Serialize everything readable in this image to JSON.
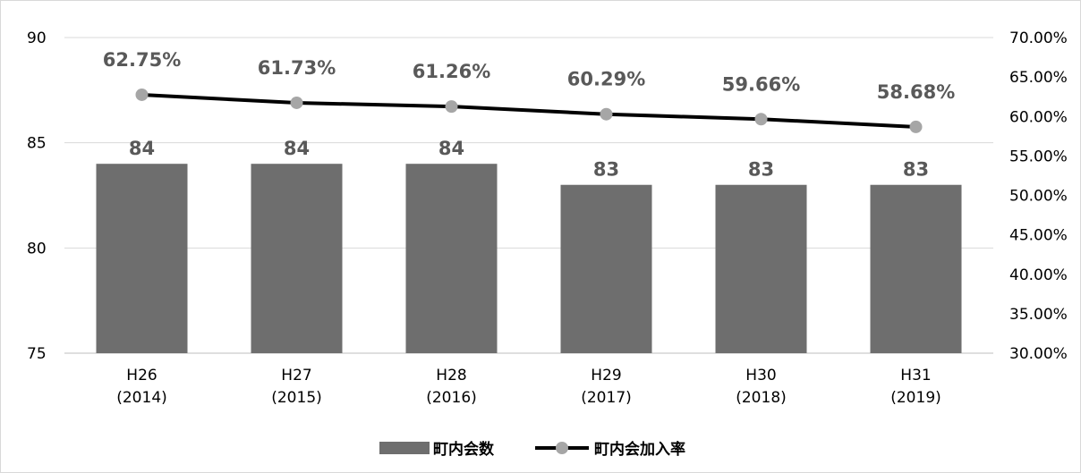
{
  "chart_data": {
    "type": "bar",
    "categories": [
      [
        "H26",
        "(2014)"
      ],
      [
        "H27",
        "(2015)"
      ],
      [
        "H28",
        "(2016)"
      ],
      [
        "H29",
        "(2017)"
      ],
      [
        "H30",
        "(2018)"
      ],
      [
        "H31",
        "(2019)"
      ]
    ],
    "left_axis": {
      "min": 75,
      "max": 90,
      "ticks": [
        {
          "value": 90,
          "label": "90"
        },
        {
          "value": 85,
          "label": "85"
        },
        {
          "value": 80,
          "label": "80"
        },
        {
          "value": 75,
          "label": "75"
        }
      ]
    },
    "right_axis": {
      "min": 30,
      "max": 70,
      "ticks": [
        {
          "value": 70,
          "label": "70.00%"
        },
        {
          "value": 65,
          "label": "65.00%"
        },
        {
          "value": 60,
          "label": "60.00%"
        },
        {
          "value": 55,
          "label": "55.00%"
        },
        {
          "value": 50,
          "label": "50.00%"
        },
        {
          "value": 45,
          "label": "45.00%"
        },
        {
          "value": 40,
          "label": "40.00%"
        },
        {
          "value": 35,
          "label": "35.00%"
        },
        {
          "value": 30,
          "label": "30.00%"
        }
      ]
    },
    "grid": true,
    "legend_position": "bottom",
    "series": [
      {
        "name": "町内会数",
        "type": "bar",
        "axis": "left",
        "color": "#6e6e6e",
        "values": [
          84,
          84,
          84,
          83,
          83,
          83
        ],
        "labels": [
          "84",
          "84",
          "84",
          "83",
          "83",
          "83"
        ]
      },
      {
        "name": "町内会加入率",
        "type": "line",
        "axis": "right",
        "color": "#000000",
        "marker_color": "#a6a6a6",
        "values": [
          62.75,
          61.73,
          61.26,
          60.29,
          59.66,
          58.68
        ],
        "labels": [
          "62.75%",
          "61.73%",
          "61.26%",
          "60.29%",
          "59.66%",
          "58.68%"
        ]
      }
    ]
  }
}
